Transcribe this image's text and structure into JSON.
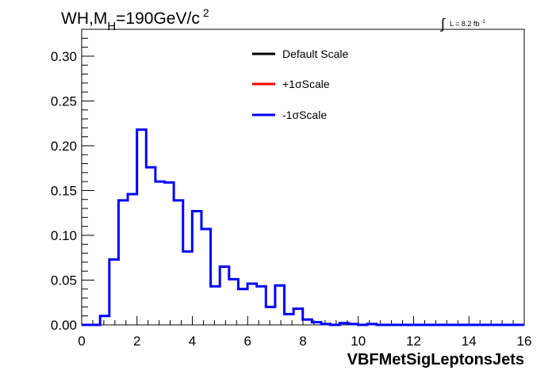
{
  "chart_data": {
    "type": "histogram",
    "title_prefix": "WH,M",
    "title_sub": "H",
    "title_suffix": "=190GeV/c",
    "title_sup": "2",
    "lumi_label": "L = 8.2 fb",
    "lumi_sup": "-1",
    "xlabel": "VBFMetSigLeptonsJets",
    "xlim": [
      0,
      16
    ],
    "ylim": [
      0,
      0.33
    ],
    "x_ticks": [
      "0",
      "2",
      "4",
      "6",
      "8",
      "10",
      "12",
      "14",
      "16"
    ],
    "y_ticks": [
      "0.00",
      "0.05",
      "0.10",
      "0.15",
      "0.20",
      "0.25",
      "0.30"
    ],
    "bin_width": 0.333,
    "bin_start": 0,
    "legend": [
      {
        "name": "Default Scale",
        "color": "#000000"
      },
      {
        "name": "+1σScale",
        "color": "#ff0000"
      },
      {
        "name": "-1σScale",
        "color": "#0000ff"
      }
    ],
    "series": [
      {
        "name": "-1σScale",
        "color": "#0000ff",
        "values": [
          0.0,
          0.0,
          0.01,
          0.073,
          0.139,
          0.146,
          0.218,
          0.176,
          0.16,
          0.159,
          0.139,
          0.082,
          0.127,
          0.107,
          0.043,
          0.065,
          0.051,
          0.04,
          0.046,
          0.043,
          0.02,
          0.044,
          0.012,
          0.018,
          0.006,
          0.003,
          0.001,
          0.0,
          0.002,
          0.001,
          0.0,
          0.001,
          0.0,
          0.0,
          0.0,
          0.0,
          0.0,
          0.0,
          0.0,
          0.0,
          0.0,
          0.0,
          0.0,
          0.0,
          0.0,
          0.0,
          0.0,
          0.0
        ]
      }
    ]
  }
}
